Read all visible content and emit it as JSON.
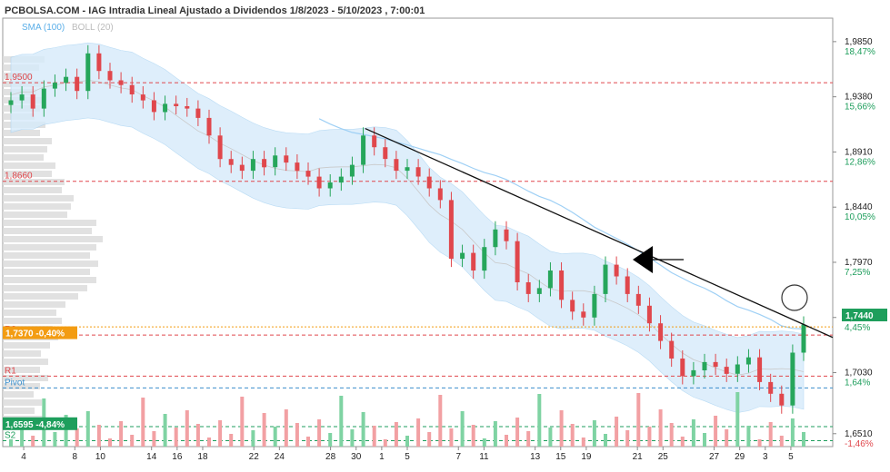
{
  "chart_data": {
    "type": "candlestick",
    "title": "PCBOLSA.COM - IAG Intradia Lineal Ajustado a Dividendos 1/8/2023 - 5/10/2023 , 7:00:01",
    "indicators": {
      "sma": "SMA (100)",
      "boll": "BOLL (20)"
    },
    "colors": {
      "up": "#26a65b",
      "down": "#e0474c",
      "band": "#d6ebfb",
      "sma": "#9fd0f5",
      "hist": "#dcdcdc"
    },
    "ylim": [
      1.64,
      2.005
    ],
    "xlim": [
      0,
      916
    ],
    "right_axis": [
      {
        "price": "1,9850",
        "pct": "18,47%",
        "pos": 1.985
      },
      {
        "price": "1,9380",
        "pct": "15,66%",
        "pos": 1.938
      },
      {
        "price": "1,8910",
        "pct": "12,86%",
        "pos": 1.891
      },
      {
        "price": "1,8440",
        "pct": "10,05%",
        "pos": 1.844
      },
      {
        "price": "1,7970",
        "pct": "7,25%",
        "pos": 1.797
      },
      {
        "price": "1,7500",
        "pct": "4,45%",
        "pos": 1.75
      },
      {
        "price": "1,7030",
        "pct": "1,64%",
        "pos": 1.703
      },
      {
        "price": "1,6510",
        "pct": "-1,46%",
        "pos": 1.651
      }
    ],
    "current_price": {
      "label": "1,7440",
      "value": 1.744
    },
    "x_ticks": [
      "4",
      "8",
      "10",
      "14",
      "16",
      "18",
      "22",
      "24",
      "28",
      "30",
      "1",
      "5",
      "7",
      "11",
      "13",
      "15",
      "19",
      "21",
      "25",
      "27",
      "29",
      "3",
      "5"
    ],
    "x_tick_index": [
      1,
      5,
      7,
      11,
      13,
      15,
      19,
      21,
      25,
      27,
      29,
      31,
      35,
      37,
      41,
      43,
      45,
      49,
      51,
      55,
      57,
      59,
      61
    ],
    "levels": [
      {
        "name": "resistance-1950",
        "label": "1,9500",
        "value": 1.95,
        "color": "#e0474c",
        "dash": true
      },
      {
        "name": "resistance-1866",
        "label": "1,8660",
        "value": 1.866,
        "color": "#e0474c",
        "dash": true
      },
      {
        "name": "r2",
        "label": "R2",
        "value": 1.735,
        "color": "#e0474c",
        "dash": true
      },
      {
        "name": "r1",
        "label": "R1",
        "value": 1.7,
        "color": "#e0474c",
        "dash": true
      },
      {
        "name": "pivot",
        "label": "Pivot",
        "value": 1.69,
        "color": "#3b8fcc",
        "dash": true
      },
      {
        "name": "s1",
        "label": "",
        "value": 1.657,
        "color": "#1e9e5c",
        "dash": true
      },
      {
        "name": "s2",
        "label": "S2",
        "value": 1.645,
        "color": "#1e9e5c",
        "dash": true
      }
    ],
    "price_tags": [
      {
        "name": "tag-open",
        "text": "1,7370 -0,40%",
        "value": 1.737,
        "color": "#f39c12"
      },
      {
        "name": "tag-low",
        "text": "1,6595 -4,84%",
        "value": 1.6595,
        "color": "#1e9e5c"
      }
    ],
    "trendline": {
      "from": [
        400,
        1.911
      ],
      "to": [
        916,
        1.733
      ]
    },
    "candles_close": [
      1.935,
      1.94,
      1.928,
      1.945,
      1.95,
      1.955,
      1.943,
      1.975,
      1.96,
      1.952,
      1.948,
      1.94,
      1.935,
      1.925,
      1.932,
      1.93,
      1.928,
      1.92,
      1.905,
      1.885,
      1.88,
      1.875,
      1.885,
      1.878,
      1.888,
      1.882,
      1.875,
      1.87,
      1.86,
      1.865,
      1.87,
      1.88,
      1.905,
      1.895,
      1.885,
      1.875,
      1.878,
      1.87,
      1.86,
      1.85,
      1.8,
      1.805,
      1.79,
      1.81,
      1.825,
      1.815,
      1.78,
      1.77,
      1.775,
      1.79,
      1.765,
      1.755,
      1.75,
      1.77,
      1.795,
      1.785,
      1.77,
      1.76,
      1.745,
      1.73,
      1.715,
      1.7,
      1.705,
      1.712,
      1.708,
      1.702,
      1.71,
      1.716,
      1.695,
      1.685,
      1.675,
      1.72,
      1.744
    ]
  }
}
